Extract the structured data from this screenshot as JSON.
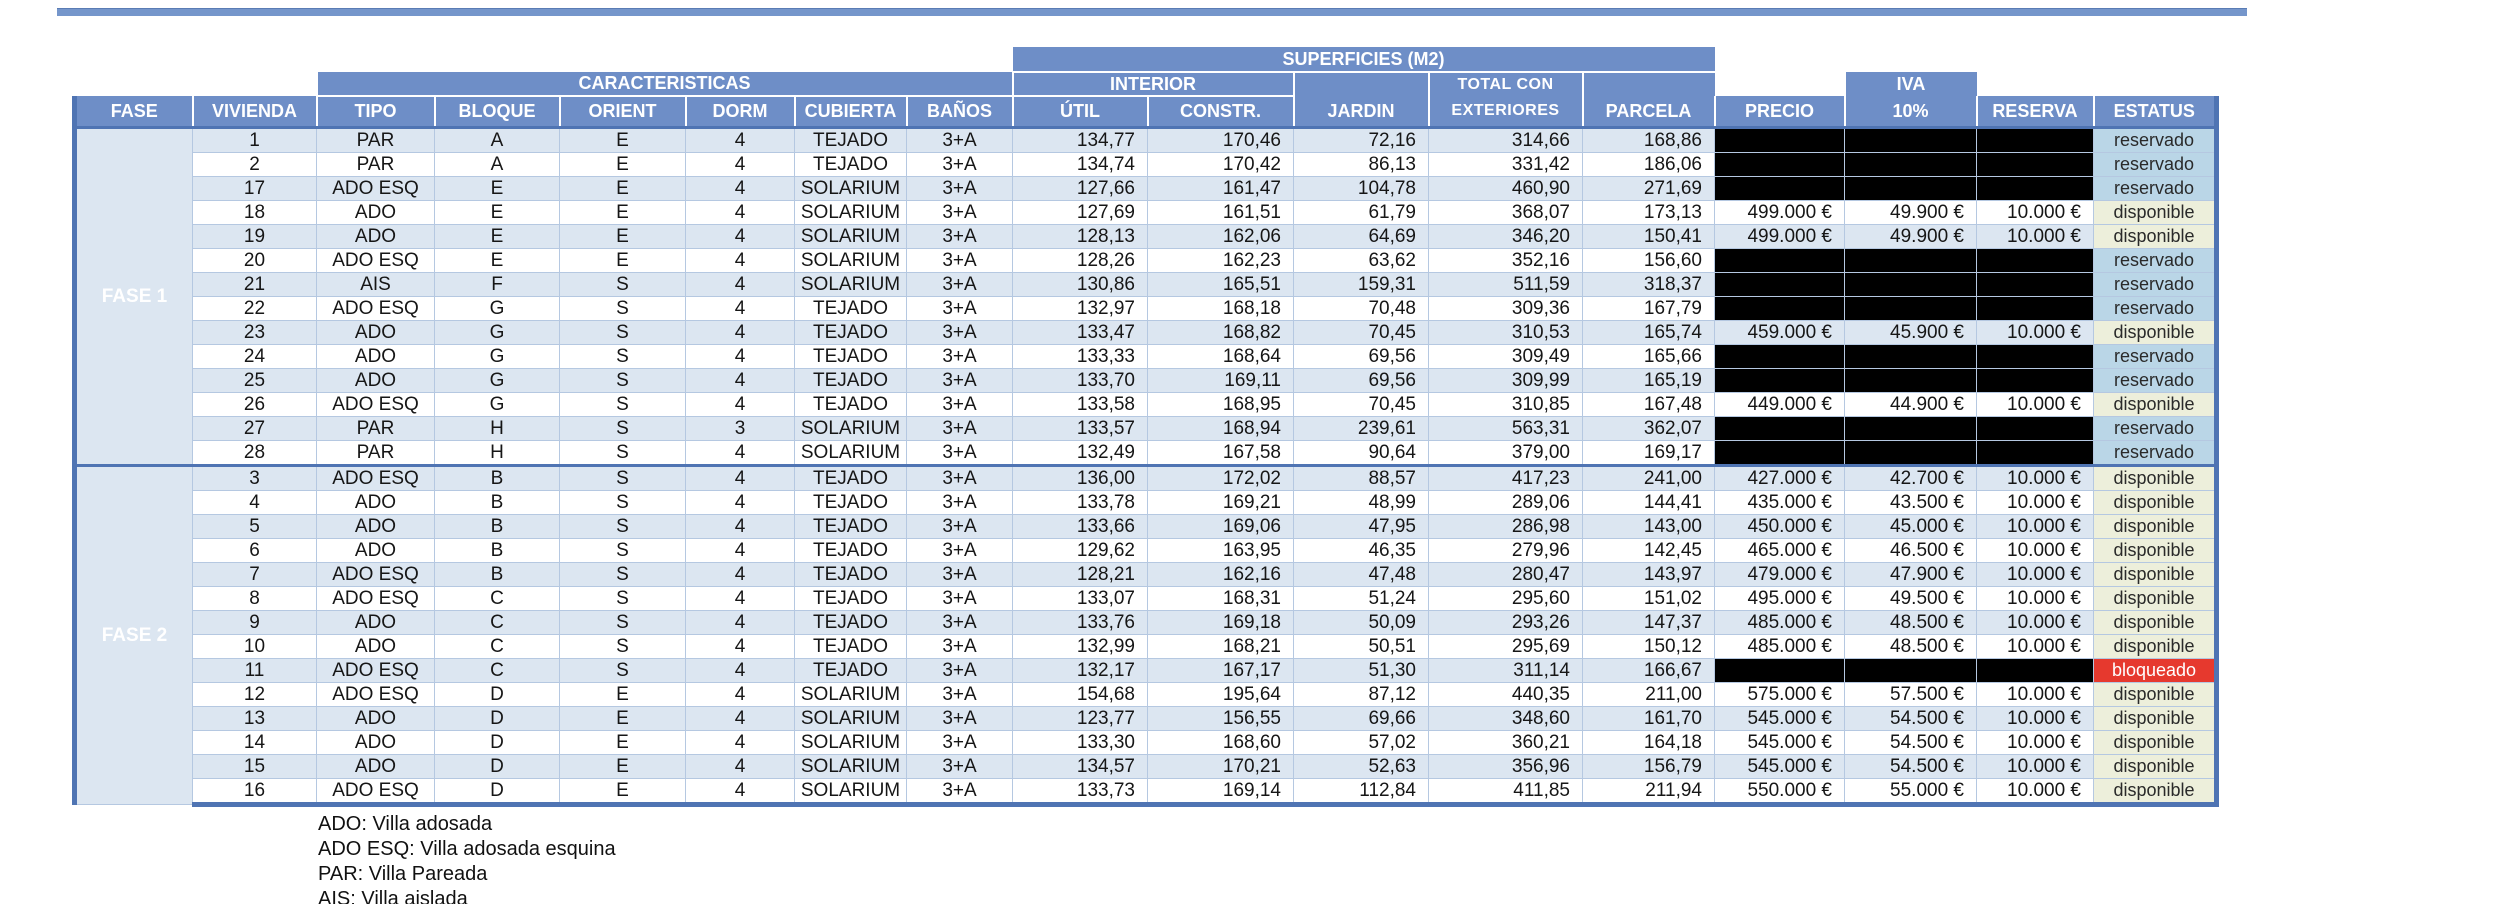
{
  "table": {
    "group_headers": {
      "superficies": "SUPERFICIES (M2)",
      "caracteristicas": "CARACTERISTICAS",
      "interior": "INTERIOR",
      "total_con": "TOTAL CON",
      "iva": "IVA"
    },
    "columns": [
      "FASE",
      "VIVIENDA",
      "TIPO",
      "BLOQUE",
      "ORIENT",
      "DORM",
      "CUBIERTA",
      "BAÑOS",
      "ÚTIL",
      "CONSTR.",
      "JARDIN",
      "EXTERIORES",
      "PARCELA",
      "PRECIO",
      "10%",
      "RESERVA",
      "ESTATUS"
    ],
    "phases": [
      {
        "label": "FASE 1",
        "rows": [
          {
            "vivienda": "1",
            "tipo": "PAR",
            "bloque": "A",
            "orient": "E",
            "dorm": "4",
            "cubierta": "TEJADO",
            "banos": "3+A",
            "util": "134,77",
            "constr": "170,46",
            "jardin": "72,16",
            "total": "314,66",
            "parcela": "168,86",
            "precio": "",
            "iva": "",
            "reserva": "",
            "estatus": "reservado"
          },
          {
            "vivienda": "2",
            "tipo": "PAR",
            "bloque": "A",
            "orient": "E",
            "dorm": "4",
            "cubierta": "TEJADO",
            "banos": "3+A",
            "util": "134,74",
            "constr": "170,42",
            "jardin": "86,13",
            "total": "331,42",
            "parcela": "186,06",
            "precio": "",
            "iva": "",
            "reserva": "",
            "estatus": "reservado"
          },
          {
            "vivienda": "17",
            "tipo": "ADO ESQ",
            "bloque": "E",
            "orient": "E",
            "dorm": "4",
            "cubierta": "SOLARIUM",
            "banos": "3+A",
            "util": "127,66",
            "constr": "161,47",
            "jardin": "104,78",
            "total": "460,90",
            "parcela": "271,69",
            "precio": "",
            "iva": "",
            "reserva": "",
            "estatus": "reservado"
          },
          {
            "vivienda": "18",
            "tipo": "ADO",
            "bloque": "E",
            "orient": "E",
            "dorm": "4",
            "cubierta": "SOLARIUM",
            "banos": "3+A",
            "util": "127,69",
            "constr": "161,51",
            "jardin": "61,79",
            "total": "368,07",
            "parcela": "173,13",
            "precio": "499.000 €",
            "iva": "49.900 €",
            "reserva": "10.000 €",
            "estatus": "disponible"
          },
          {
            "vivienda": "19",
            "tipo": "ADO",
            "bloque": "E",
            "orient": "E",
            "dorm": "4",
            "cubierta": "SOLARIUM",
            "banos": "3+A",
            "util": "128,13",
            "constr": "162,06",
            "jardin": "64,69",
            "total": "346,20",
            "parcela": "150,41",
            "precio": "499.000 €",
            "iva": "49.900 €",
            "reserva": "10.000 €",
            "estatus": "disponible"
          },
          {
            "vivienda": "20",
            "tipo": "ADO ESQ",
            "bloque": "E",
            "orient": "E",
            "dorm": "4",
            "cubierta": "SOLARIUM",
            "banos": "3+A",
            "util": "128,26",
            "constr": "162,23",
            "jardin": "63,62",
            "total": "352,16",
            "parcela": "156,60",
            "precio": "",
            "iva": "",
            "reserva": "",
            "estatus": "reservado"
          },
          {
            "vivienda": "21",
            "tipo": "AIS",
            "bloque": "F",
            "orient": "S",
            "dorm": "4",
            "cubierta": "SOLARIUM",
            "banos": "3+A",
            "util": "130,86",
            "constr": "165,51",
            "jardin": "159,31",
            "total": "511,59",
            "parcela": "318,37",
            "precio": "",
            "iva": "",
            "reserva": "",
            "estatus": "reservado"
          },
          {
            "vivienda": "22",
            "tipo": "ADO ESQ",
            "bloque": "G",
            "orient": "S",
            "dorm": "4",
            "cubierta": "TEJADO",
            "banos": "3+A",
            "util": "132,97",
            "constr": "168,18",
            "jardin": "70,48",
            "total": "309,36",
            "parcela": "167,79",
            "precio": "",
            "iva": "",
            "reserva": "",
            "estatus": "reservado"
          },
          {
            "vivienda": "23",
            "tipo": "ADO",
            "bloque": "G",
            "orient": "S",
            "dorm": "4",
            "cubierta": "TEJADO",
            "banos": "3+A",
            "util": "133,47",
            "constr": "168,82",
            "jardin": "70,45",
            "total": "310,53",
            "parcela": "165,74",
            "precio": "459.000 €",
            "iva": "45.900 €",
            "reserva": "10.000 €",
            "estatus": "disponible"
          },
          {
            "vivienda": "24",
            "tipo": "ADO",
            "bloque": "G",
            "orient": "S",
            "dorm": "4",
            "cubierta": "TEJADO",
            "banos": "3+A",
            "util": "133,33",
            "constr": "168,64",
            "jardin": "69,56",
            "total": "309,49",
            "parcela": "165,66",
            "precio": "",
            "iva": "",
            "reserva": "",
            "estatus": "reservado"
          },
          {
            "vivienda": "25",
            "tipo": "ADO",
            "bloque": "G",
            "orient": "S",
            "dorm": "4",
            "cubierta": "TEJADO",
            "banos": "3+A",
            "util": "133,70",
            "constr": "169,11",
            "jardin": "69,56",
            "total": "309,99",
            "parcela": "165,19",
            "precio": "",
            "iva": "",
            "reserva": "",
            "estatus": "reservado"
          },
          {
            "vivienda": "26",
            "tipo": "ADO ESQ",
            "bloque": "G",
            "orient": "S",
            "dorm": "4",
            "cubierta": "TEJADO",
            "banos": "3+A",
            "util": "133,58",
            "constr": "168,95",
            "jardin": "70,45",
            "total": "310,85",
            "parcela": "167,48",
            "precio": "449.000 €",
            "iva": "44.900 €",
            "reserva": "10.000 €",
            "estatus": "disponible"
          },
          {
            "vivienda": "27",
            "tipo": "PAR",
            "bloque": "H",
            "orient": "S",
            "dorm": "3",
            "cubierta": "SOLARIUM",
            "banos": "3+A",
            "util": "133,57",
            "constr": "168,94",
            "jardin": "239,61",
            "total": "563,31",
            "parcela": "362,07",
            "precio": "",
            "iva": "",
            "reserva": "",
            "estatus": "reservado"
          },
          {
            "vivienda": "28",
            "tipo": "PAR",
            "bloque": "H",
            "orient": "S",
            "dorm": "4",
            "cubierta": "SOLARIUM",
            "banos": "3+A",
            "util": "132,49",
            "constr": "167,58",
            "jardin": "90,64",
            "total": "379,00",
            "parcela": "169,17",
            "precio": "",
            "iva": "",
            "reserva": "",
            "estatus": "reservado"
          }
        ]
      },
      {
        "label": "FASE 2",
        "rows": [
          {
            "vivienda": "3",
            "tipo": "ADO ESQ",
            "bloque": "B",
            "orient": "S",
            "dorm": "4",
            "cubierta": "TEJADO",
            "banos": "3+A",
            "util": "136,00",
            "constr": "172,02",
            "jardin": "88,57",
            "total": "417,23",
            "parcela": "241,00",
            "precio": "427.000 €",
            "iva": "42.700 €",
            "reserva": "10.000 €",
            "estatus": "disponible"
          },
          {
            "vivienda": "4",
            "tipo": "ADO",
            "bloque": "B",
            "orient": "S",
            "dorm": "4",
            "cubierta": "TEJADO",
            "banos": "3+A",
            "util": "133,78",
            "constr": "169,21",
            "jardin": "48,99",
            "total": "289,06",
            "parcela": "144,41",
            "precio": "435.000 €",
            "iva": "43.500 €",
            "reserva": "10.000 €",
            "estatus": "disponible"
          },
          {
            "vivienda": "5",
            "tipo": "ADO",
            "bloque": "B",
            "orient": "S",
            "dorm": "4",
            "cubierta": "TEJADO",
            "banos": "3+A",
            "util": "133,66",
            "constr": "169,06",
            "jardin": "47,95",
            "total": "286,98",
            "parcela": "143,00",
            "precio": "450.000 €",
            "iva": "45.000 €",
            "reserva": "10.000 €",
            "estatus": "disponible"
          },
          {
            "vivienda": "6",
            "tipo": "ADO",
            "bloque": "B",
            "orient": "S",
            "dorm": "4",
            "cubierta": "TEJADO",
            "banos": "3+A",
            "util": "129,62",
            "constr": "163,95",
            "jardin": "46,35",
            "total": "279,96",
            "parcela": "142,45",
            "precio": "465.000 €",
            "iva": "46.500 €",
            "reserva": "10.000 €",
            "estatus": "disponible"
          },
          {
            "vivienda": "7",
            "tipo": "ADO ESQ",
            "bloque": "B",
            "orient": "S",
            "dorm": "4",
            "cubierta": "TEJADO",
            "banos": "3+A",
            "util": "128,21",
            "constr": "162,16",
            "jardin": "47,48",
            "total": "280,47",
            "parcela": "143,97",
            "precio": "479.000 €",
            "iva": "47.900 €",
            "reserva": "10.000 €",
            "estatus": "disponible"
          },
          {
            "vivienda": "8",
            "tipo": "ADO ESQ",
            "bloque": "C",
            "orient": "S",
            "dorm": "4",
            "cubierta": "TEJADO",
            "banos": "3+A",
            "util": "133,07",
            "constr": "168,31",
            "jardin": "51,24",
            "total": "295,60",
            "parcela": "151,02",
            "precio": "495.000 €",
            "iva": "49.500 €",
            "reserva": "10.000 €",
            "estatus": "disponible"
          },
          {
            "vivienda": "9",
            "tipo": "ADO",
            "bloque": "C",
            "orient": "S",
            "dorm": "4",
            "cubierta": "TEJADO",
            "banos": "3+A",
            "util": "133,76",
            "constr": "169,18",
            "jardin": "50,09",
            "total": "293,26",
            "parcela": "147,37",
            "precio": "485.000 €",
            "iva": "48.500 €",
            "reserva": "10.000 €",
            "estatus": "disponible"
          },
          {
            "vivienda": "10",
            "tipo": "ADO",
            "bloque": "C",
            "orient": "S",
            "dorm": "4",
            "cubierta": "TEJADO",
            "banos": "3+A",
            "util": "132,99",
            "constr": "168,21",
            "jardin": "50,51",
            "total": "295,69",
            "parcela": "150,12",
            "precio": "485.000 €",
            "iva": "48.500 €",
            "reserva": "10.000 €",
            "estatus": "disponible"
          },
          {
            "vivienda": "11",
            "tipo": "ADO ESQ",
            "bloque": "C",
            "orient": "S",
            "dorm": "4",
            "cubierta": "TEJADO",
            "banos": "3+A",
            "util": "132,17",
            "constr": "167,17",
            "jardin": "51,30",
            "total": "311,14",
            "parcela": "166,67",
            "precio": "",
            "iva": "",
            "reserva": "",
            "estatus": "bloqueado"
          },
          {
            "vivienda": "12",
            "tipo": "ADO ESQ",
            "bloque": "D",
            "orient": "E",
            "dorm": "4",
            "cubierta": "SOLARIUM",
            "banos": "3+A",
            "util": "154,68",
            "constr": "195,64",
            "jardin": "87,12",
            "total": "440,35",
            "parcela": "211,00",
            "precio": "575.000 €",
            "iva": "57.500 €",
            "reserva": "10.000 €",
            "estatus": "disponible"
          },
          {
            "vivienda": "13",
            "tipo": "ADO",
            "bloque": "D",
            "orient": "E",
            "dorm": "4",
            "cubierta": "SOLARIUM",
            "banos": "3+A",
            "util": "123,77",
            "constr": "156,55",
            "jardin": "69,66",
            "total": "348,60",
            "parcela": "161,70",
            "precio": "545.000 €",
            "iva": "54.500 €",
            "reserva": "10.000 €",
            "estatus": "disponible"
          },
          {
            "vivienda": "14",
            "tipo": "ADO",
            "bloque": "D",
            "orient": "E",
            "dorm": "4",
            "cubierta": "SOLARIUM",
            "banos": "3+A",
            "util": "133,30",
            "constr": "168,60",
            "jardin": "57,02",
            "total": "360,21",
            "parcela": "164,18",
            "precio": "545.000 €",
            "iva": "54.500 €",
            "reserva": "10.000 €",
            "estatus": "disponible"
          },
          {
            "vivienda": "15",
            "tipo": "ADO",
            "bloque": "D",
            "orient": "E",
            "dorm": "4",
            "cubierta": "SOLARIUM",
            "banos": "3+A",
            "util": "134,57",
            "constr": "170,21",
            "jardin": "52,63",
            "total": "356,96",
            "parcela": "156,79",
            "precio": "545.000 €",
            "iva": "54.500 €",
            "reserva": "10.000 €",
            "estatus": "disponible"
          },
          {
            "vivienda": "16",
            "tipo": "ADO ESQ",
            "bloque": "D",
            "orient": "E",
            "dorm": "4",
            "cubierta": "SOLARIUM",
            "banos": "3+A",
            "util": "133,73",
            "constr": "169,14",
            "jardin": "112,84",
            "total": "411,85",
            "parcela": "211,94",
            "precio": "550.000 €",
            "iva": "55.000 €",
            "reserva": "10.000 €",
            "estatus": "disponible"
          }
        ]
      }
    ]
  },
  "legend": [
    "ADO: Villa adosada",
    "ADO ESQ: Villa adosada esquina",
    "PAR: Villa Pareada",
    "AIS: Villa aislada"
  ],
  "colors": {
    "header_blue": "#6e8ec7",
    "border_blue": "#4f74b3",
    "row_shaded": "#dce6f1",
    "fase1_green": "#76933c",
    "fase2_orange": "#f9bd8c",
    "reservado_bg": "#bad6e7",
    "disponible_bg": "#edefdb",
    "bloqueado_bg": "#e6392e",
    "blackout": "#000000"
  }
}
